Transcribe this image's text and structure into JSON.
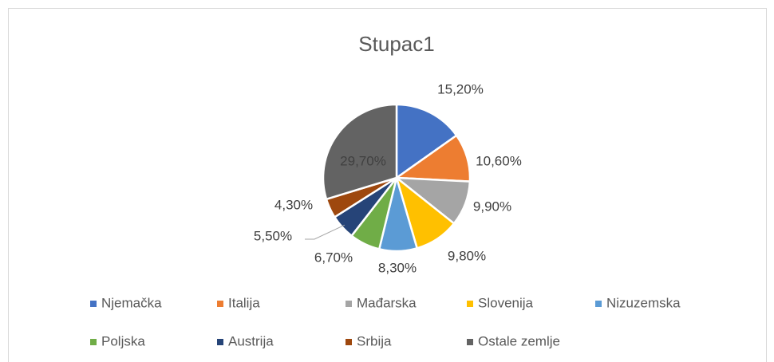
{
  "chart_data": {
    "type": "pie",
    "title": "Stupac1",
    "categories": [
      "Njemačka",
      "Italija",
      "Mađarska",
      "Slovenija",
      "Nizuzemska",
      "Poljska",
      "Austrija",
      "Srbija",
      "Ostale zemlje"
    ],
    "values": [
      15.2,
      10.6,
      9.9,
      9.8,
      8.3,
      6.7,
      5.5,
      4.3,
      29.7
    ],
    "value_labels": [
      "15,20%",
      "10,60%",
      "9,90%",
      "9,80%",
      "8,30%",
      "6,70%",
      "5,50%",
      "4,30%",
      "29,70%"
    ],
    "colors": [
      "#4472c4",
      "#ed7d31",
      "#a5a5a5",
      "#ffc000",
      "#5b9bd5",
      "#70ad47",
      "#264478",
      "#9e480e",
      "#636363"
    ],
    "legend": "bottom"
  }
}
